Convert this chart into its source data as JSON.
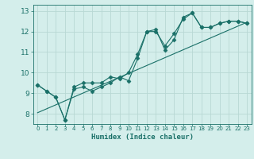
{
  "xlabel": "Humidex (Indice chaleur)",
  "ylabel": "",
  "bg_color": "#d4eeeb",
  "line_color": "#1a7068",
  "grid_color": "#b8d8d4",
  "xlim": [
    -0.5,
    23.5
  ],
  "ylim": [
    7.5,
    13.3
  ],
  "xticks": [
    0,
    1,
    2,
    3,
    4,
    5,
    6,
    7,
    8,
    9,
    10,
    11,
    12,
    13,
    14,
    15,
    16,
    17,
    18,
    19,
    20,
    21,
    22,
    23
  ],
  "yticks": [
    8,
    9,
    10,
    11,
    12,
    13
  ],
  "series1_x": [
    0,
    1,
    2,
    3,
    4,
    5,
    6,
    7,
    8,
    9,
    10,
    11,
    12,
    13,
    14,
    15,
    16,
    17,
    18,
    19,
    20,
    21,
    22,
    23
  ],
  "series1_y": [
    9.4,
    9.1,
    8.8,
    7.7,
    9.2,
    9.3,
    9.1,
    9.3,
    9.5,
    9.8,
    9.6,
    10.7,
    12.0,
    12.1,
    11.1,
    11.6,
    12.7,
    12.9,
    12.2,
    12.2,
    12.4,
    12.5,
    12.5,
    12.4
  ],
  "series2_x": [
    0,
    1,
    2,
    3,
    4,
    5,
    6,
    7,
    8,
    9,
    10,
    11,
    12,
    13,
    14,
    15,
    16,
    17,
    18,
    19,
    20,
    21,
    22,
    23
  ],
  "series2_y": [
    9.4,
    9.1,
    8.8,
    7.7,
    9.3,
    9.5,
    9.5,
    9.5,
    9.8,
    9.7,
    10.0,
    10.9,
    12.0,
    12.0,
    11.3,
    11.9,
    12.6,
    12.9,
    12.2,
    12.2,
    12.4,
    12.5,
    12.5,
    12.4
  ],
  "series3_x": [
    0,
    23
  ],
  "series3_y": [
    8.05,
    12.45
  ]
}
